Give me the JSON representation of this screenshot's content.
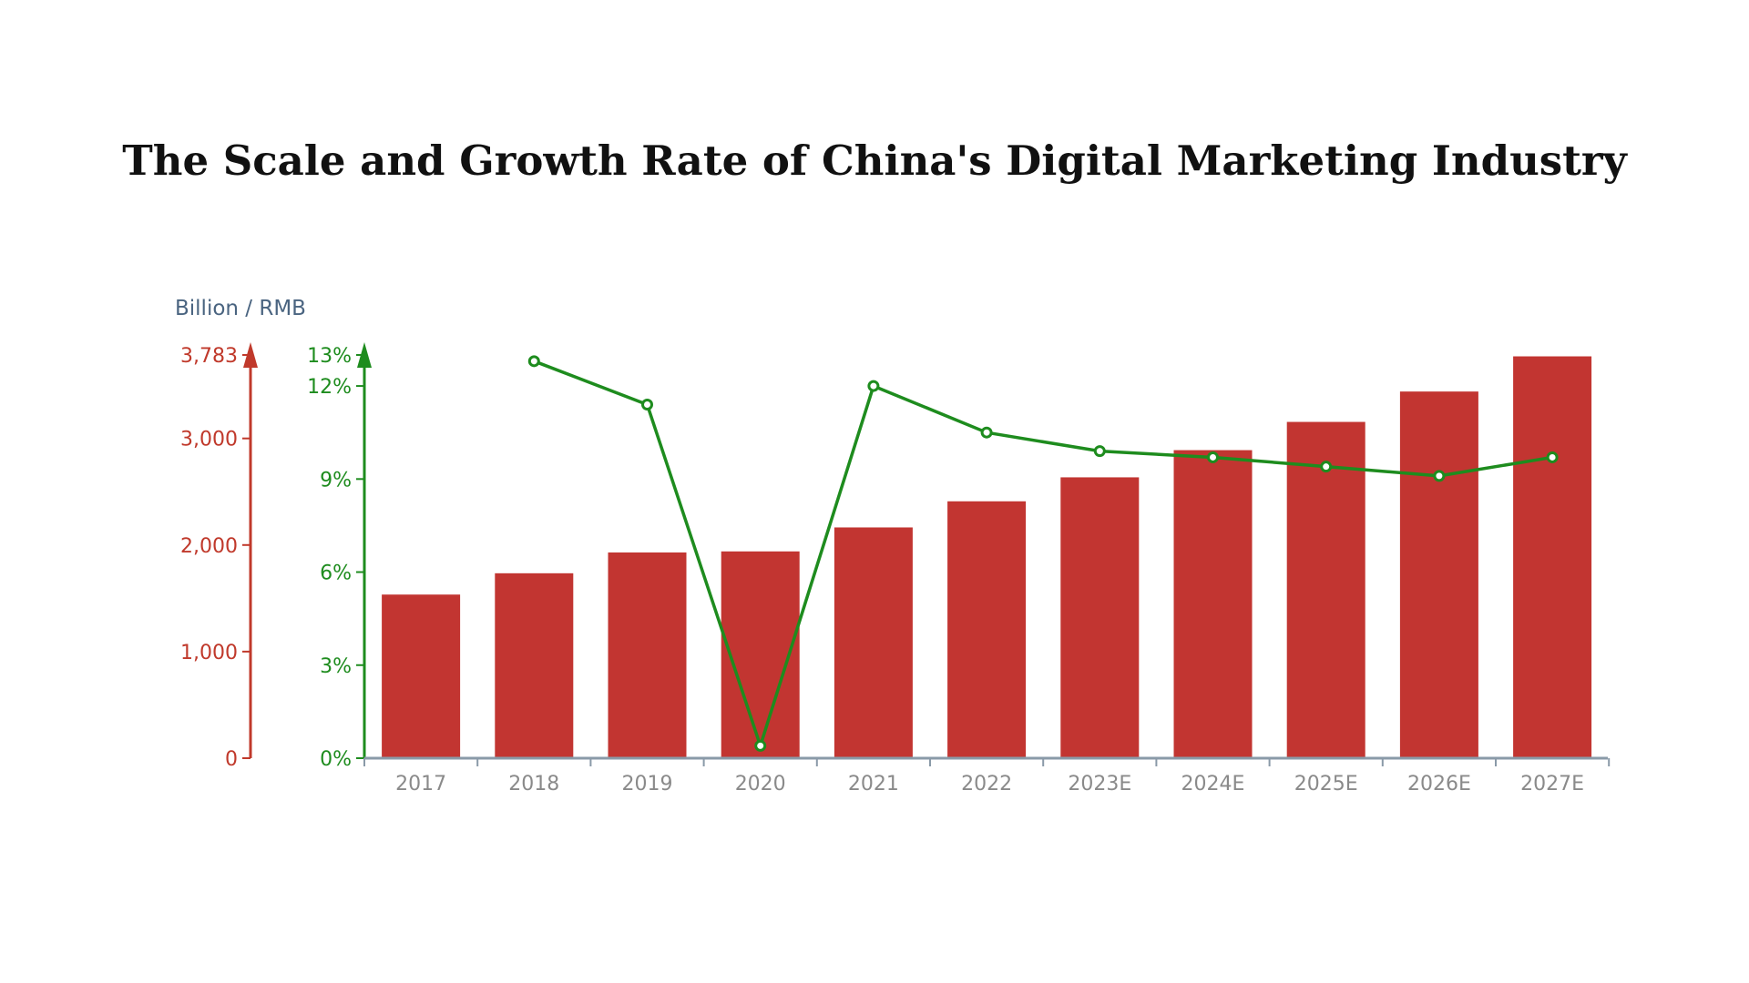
{
  "chart_data": {
    "type": "bar",
    "title": "The Scale and Growth Rate of China's Digital Marketing Industry",
    "unit_label": "Billion / RMB",
    "categories": [
      "2017",
      "2018",
      "2019",
      "2020",
      "2021",
      "2022",
      "2023E",
      "2024E",
      "2025E",
      "2026E",
      "2027E"
    ],
    "series": [
      {
        "kind": "bar",
        "axis": "left",
        "values": [
          1535,
          1735,
          1930,
          1940,
          2165,
          2410,
          2635,
          2890,
          3155,
          3440,
          3770
        ]
      },
      {
        "kind": "line",
        "axis": "right",
        "values": [
          null,
          12.8,
          11.4,
          0.4,
          12.0,
          10.5,
          9.9,
          9.7,
          9.4,
          9.1,
          9.7
        ]
      }
    ],
    "left_axis": {
      "ylim": [
        0,
        3783
      ],
      "ticks": [
        0,
        1000,
        2000,
        3000,
        3783
      ],
      "tick_labels": [
        "0",
        "1,000",
        "2,000",
        "3,000",
        "3,783"
      ],
      "color": "#c0392b"
    },
    "right_axis": {
      "ylim": [
        0,
        13
      ],
      "ticks": [
        0,
        3,
        6,
        9,
        12,
        13
      ],
      "tick_labels": [
        "0%",
        "3%",
        "6%",
        "9%",
        "12%",
        "13%"
      ],
      "color": "#1e8c1e"
    },
    "colors": {
      "bar": "#c23531",
      "line": "#1e8c1e",
      "x_axis": "#8a9aa8",
      "x_labels": "#8a8a8a",
      "unit_label": "#4a6480"
    },
    "grid": false,
    "legend": "none"
  }
}
